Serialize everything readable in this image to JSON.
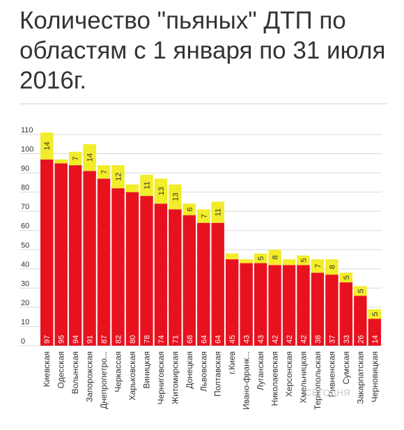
{
  "title": "Количество \"пьяных\" ДТП по областям с 1 января по 31 июля 2016г.",
  "watermark": "СЕГОДНЯ",
  "colors": {
    "base": "#e8121f",
    "extra": "#f2ec2a",
    "grid": "#d9d9d9",
    "text": "#333333"
  },
  "chart_data": {
    "type": "bar",
    "stacked": true,
    "ylim": [
      0,
      110
    ],
    "yticks": [
      0,
      10,
      20,
      30,
      40,
      50,
      60,
      70,
      80,
      90,
      100,
      110
    ],
    "grid": true,
    "categories": [
      "Киевская",
      "Одесская",
      "Волынская",
      "Запорожская",
      "Днепропетро...",
      "Черкассая",
      "Харьковская",
      "Виницкая",
      "Черниговская",
      "Житомирская",
      "Донецкая",
      "Львовская",
      "Полтавская",
      "г.Киев",
      "Ивано-франк...",
      "Луганская",
      "Николаевская",
      "Херсонская",
      "Хмельницкая",
      "Тернопольская",
      "Ривненская",
      "Сумская",
      "Закарпатская",
      "Черновицкая"
    ],
    "series": [
      {
        "values": [
          97,
          95,
          94,
          91,
          87,
          82,
          80,
          78,
          74,
          71,
          68,
          64,
          64,
          45,
          43,
          43,
          42,
          42,
          42,
          38,
          37,
          33,
          26,
          14
        ]
      },
      {
        "values": [
          14,
          2,
          7,
          14,
          7,
          12,
          4,
          11,
          13,
          13,
          6,
          7,
          11,
          3,
          2,
          5,
          8,
          3,
          5,
          7,
          8,
          5,
          5,
          5
        ],
        "labels": [
          "14",
          "",
          "7",
          "14",
          "7",
          "12",
          "",
          "11",
          "13",
          "13",
          "6",
          "7",
          "11",
          "",
          "",
          "5",
          "8",
          "",
          "5",
          "7",
          "8",
          "5",
          "5",
          "5"
        ]
      }
    ]
  }
}
